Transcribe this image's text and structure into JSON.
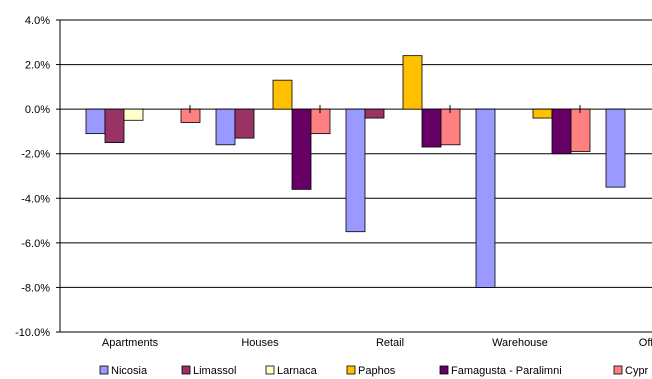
{
  "chart_data": {
    "type": "bar",
    "categories": [
      "Apartments",
      "Houses",
      "Retail",
      "Warehouse",
      "Offices"
    ],
    "category_labels_shown": [
      "Apartments",
      "Houses",
      "Retail",
      "Warehouse",
      "Offic"
    ],
    "series": [
      {
        "name": "Nicosia",
        "legend_label": "Nicosia",
        "color": "#9999ff",
        "values": [
          -1.1,
          -1.6,
          -5.5,
          -8.0,
          -3.5
        ]
      },
      {
        "name": "Limassol",
        "legend_label": "Limassol",
        "color": "#993366",
        "values": [
          -1.5,
          -1.3,
          -0.4,
          null,
          null
        ]
      },
      {
        "name": "Larnaca",
        "legend_label": "Larnaca",
        "color": "#ffffcc",
        "values": [
          -0.5,
          null,
          null,
          null,
          null
        ]
      },
      {
        "name": "Paphos",
        "legend_label": "Paphos",
        "color": "#ffc000",
        "values": [
          null,
          1.3,
          2.4,
          -0.4,
          null
        ]
      },
      {
        "name": "Famagusta - Paralimni",
        "legend_label": "Famagusta - Paralimni",
        "color": "#660066",
        "values": [
          null,
          -3.6,
          -1.7,
          -2.0,
          null
        ]
      },
      {
        "name": "Cyprus",
        "legend_label": "Cypr",
        "color": "#ff8080",
        "values": [
          -0.6,
          -1.1,
          -1.6,
          -1.9,
          null
        ]
      }
    ],
    "y_ticks": [
      "4.0%",
      "2.0%",
      "0.0%",
      "-2.0%",
      "-4.0%",
      "-6.0%",
      "-8.0%",
      "-10.0%"
    ],
    "ylim": [
      -10,
      4
    ],
    "title": "",
    "xlabel": "",
    "ylabel": "",
    "grid": true,
    "legend_position": "bottom"
  }
}
